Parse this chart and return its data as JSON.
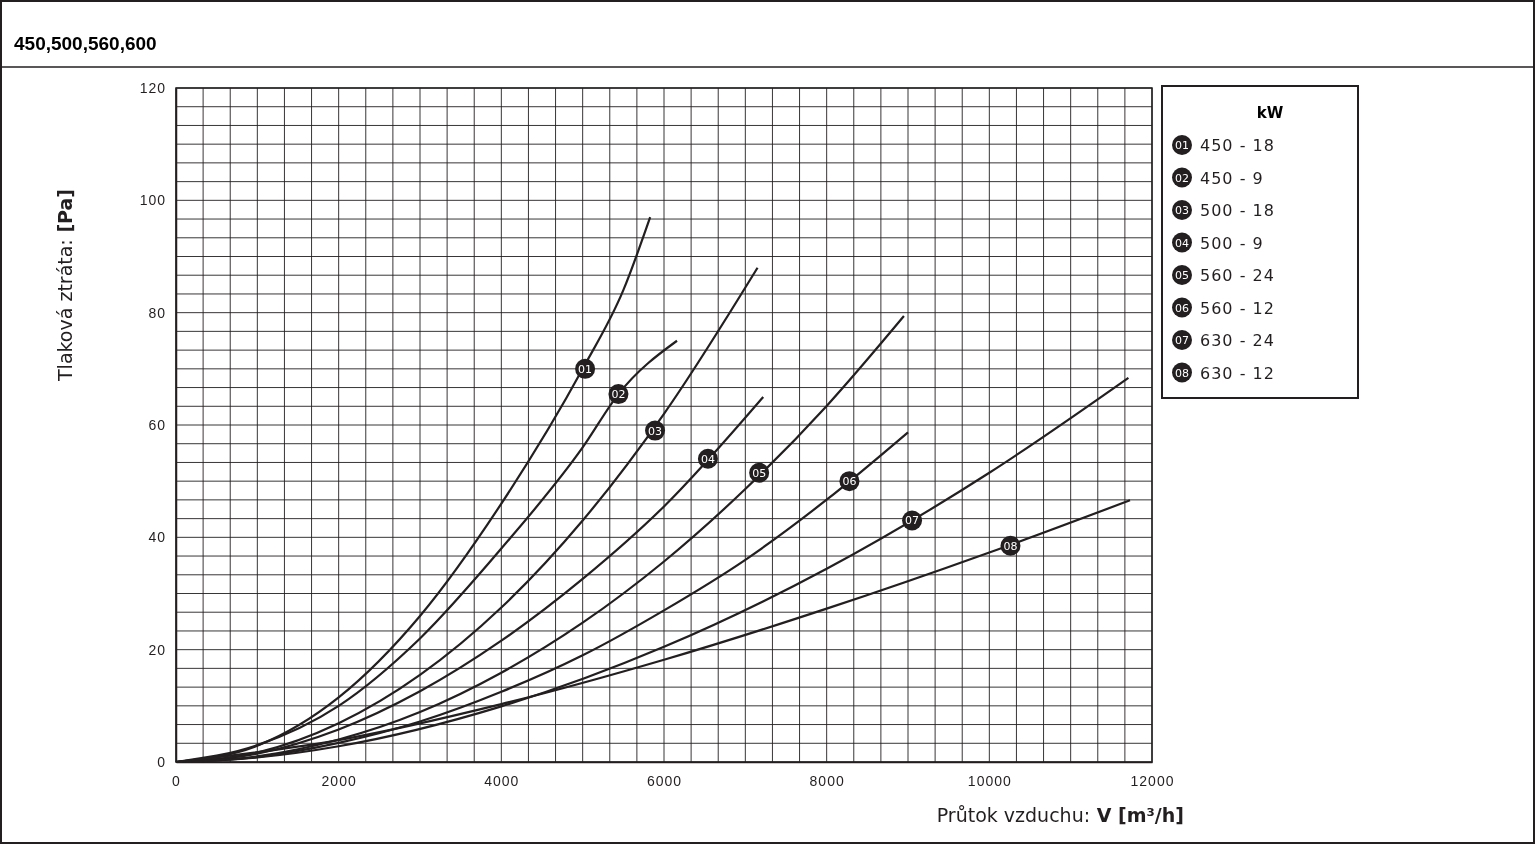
{
  "chart_data": {
    "type": "line",
    "title": "450,500,560,600",
    "xlabel": "Průtok vzduchu:  V [m³/h]",
    "ylabel": "Tlaková ztráta: [Pa]",
    "legend_title": "kW",
    "legend": "right",
    "grid": true,
    "marker": "none",
    "line_style": "solid",
    "xlim": [
      0,
      12000
    ],
    "ylim": [
      0,
      120
    ],
    "xticks": [
      0,
      {
        "value": 333.33,
        "label": null
      },
      {
        "value": 666.67,
        "label": null
      },
      {
        "value": 1000,
        "label": null
      },
      {
        "value": 1333.33,
        "label": null
      },
      {
        "value": 1666.67,
        "label": null
      },
      2000,
      {
        "value": 2333.33,
        "label": null
      },
      {
        "value": 2666.67,
        "label": null
      },
      {
        "value": 3000,
        "label": null
      },
      {
        "value": 3333.33,
        "label": null
      },
      {
        "value": 3666.67,
        "label": null
      },
      4000,
      {
        "value": 4333.33,
        "label": null
      },
      {
        "value": 4666.67,
        "label": null
      },
      {
        "value": 5000,
        "label": null
      },
      {
        "value": 5333.33,
        "label": null
      },
      {
        "value": 5666.67,
        "label": null
      },
      6000,
      {
        "value": 6333.33,
        "label": null
      },
      {
        "value": 6666.67,
        "label": null
      },
      {
        "value": 7000,
        "label": null
      },
      {
        "value": 7333.33,
        "label": null
      },
      {
        "value": 7666.67,
        "label": null
      },
      8000,
      {
        "value": 8333.33,
        "label": null
      },
      {
        "value": 8666.67,
        "label": null
      },
      {
        "value": 9000,
        "label": null
      },
      {
        "value": 9333.33,
        "label": null
      },
      {
        "value": 9666.67,
        "label": null
      },
      10000,
      {
        "value": 10333.33,
        "label": null
      },
      {
        "value": 10666.67,
        "label": null
      },
      {
        "value": 11000,
        "label": null
      },
      {
        "value": 11333.33,
        "label": null
      },
      {
        "value": 11666.67,
        "label": null
      },
      12000
    ],
    "yticks": [
      0,
      {
        "value": 3.33,
        "label": null
      },
      {
        "value": 6.67,
        "label": null
      },
      {
        "value": 10,
        "label": null
      },
      {
        "value": 13.33,
        "label": null
      },
      {
        "value": 16.67,
        "label": null
      },
      20,
      {
        "value": 23.33,
        "label": null
      },
      {
        "value": 26.67,
        "label": null
      },
      {
        "value": 30,
        "label": null
      },
      {
        "value": 33.33,
        "label": null
      },
      {
        "value": 36.67,
        "label": null
      },
      40,
      {
        "value": 43.33,
        "label": null
      },
      {
        "value": 46.67,
        "label": null
      },
      {
        "value": 50,
        "label": null
      },
      {
        "value": 53.33,
        "label": null
      },
      {
        "value": 56.67,
        "label": null
      },
      60,
      {
        "value": 63.33,
        "label": null
      },
      {
        "value": 66.67,
        "label": null
      },
      {
        "value": 70,
        "label": null
      },
      {
        "value": 73.33,
        "label": null
      },
      {
        "value": 76.67,
        "label": null
      },
      80,
      {
        "value": 83.33,
        "label": null
      },
      {
        "value": 86.67,
        "label": null
      },
      {
        "value": 90,
        "label": null
      },
      {
        "value": 93.33,
        "label": null
      },
      {
        "value": 96.67,
        "label": null
      },
      100,
      {
        "value": 103.33,
        "label": null
      },
      {
        "value": 106.67,
        "label": null
      },
      {
        "value": 110,
        "label": null
      },
      {
        "value": 113.33,
        "label": null
      },
      {
        "value": 116.67,
        "label": null
      },
      120
    ],
    "series": [
      {
        "name": "450 - 18",
        "color": "#231f20",
        "x": [
          0,
          1000,
          2000,
          3000,
          4000,
          5000,
          5500,
          5830
        ],
        "values": [
          0,
          2.9,
          11.5,
          26,
          46,
          70,
          84,
          97
        ]
      },
      {
        "name": "450 - 9",
        "color": "#231f20",
        "x": [
          0,
          1000,
          2000,
          3000,
          4000,
          5000,
          5440,
          6160
        ],
        "values": [
          0,
          3,
          10,
          22,
          38,
          56,
          65.5,
          75
        ]
      },
      {
        "name": "500 - 18",
        "color": "#231f20",
        "x": [
          0,
          1000,
          2000,
          3000,
          4000,
          5000,
          6000,
          7150
        ],
        "values": [
          0,
          1.7,
          6.9,
          15.5,
          27.5,
          43,
          62,
          88
        ]
      },
      {
        "name": "500 - 9",
        "color": "#231f20",
        "x": [
          0,
          1000,
          2000,
          3000,
          4000,
          5000,
          6000,
          7220
        ],
        "values": [
          0,
          1.5,
          5.8,
          12.6,
          21.6,
          32.6,
          45.5,
          65
        ]
      },
      {
        "name": "560 - 24",
        "color": "#231f20",
        "x": [
          0,
          1000,
          2000,
          3000,
          4000,
          5000,
          6000,
          7000,
          8000,
          8950
        ],
        "values": [
          0,
          1,
          4,
          8.9,
          15.9,
          24.8,
          35.7,
          48.6,
          63.4,
          79.4
        ]
      },
      {
        "name": "560 - 12",
        "color": "#231f20",
        "x": [
          0,
          1000,
          2000,
          3000,
          4000,
          5000,
          6000,
          7000,
          8000,
          9000
        ],
        "values": [
          0,
          0.9,
          3.4,
          7.2,
          12.5,
          19,
          27,
          36,
          46.7,
          58.7
        ]
      },
      {
        "name": "630 - 24",
        "color": "#231f20",
        "x": [
          0,
          1000,
          2000,
          4000,
          6000,
          8000,
          10000,
          11710
        ],
        "values": [
          0,
          0.8,
          2.8,
          9.9,
          20.5,
          34.4,
          51.5,
          68.4
        ]
      },
      {
        "name": "630 - 12",
        "color": "#231f20",
        "x": [
          0,
          2000,
          4000,
          6000,
          8000,
          10000,
          11730
        ],
        "values": [
          0,
          3.9,
          10.3,
          18.2,
          27.3,
          37.3,
          46.6
        ]
      }
    ],
    "annotations": [
      {
        "text": "01",
        "x": 5030,
        "y": 70
      },
      {
        "text": "02",
        "x": 5440,
        "y": 65.5
      },
      {
        "text": "03",
        "x": 5890,
        "y": 59
      },
      {
        "text": "04",
        "x": 6540,
        "y": 54
      },
      {
        "text": "05",
        "x": 7170,
        "y": 51.5
      },
      {
        "text": "06",
        "x": 8280,
        "y": 50
      },
      {
        "text": "07",
        "x": 9050,
        "y": 43
      },
      {
        "text": "08",
        "x": 10260,
        "y": 38.5
      }
    ]
  }
}
